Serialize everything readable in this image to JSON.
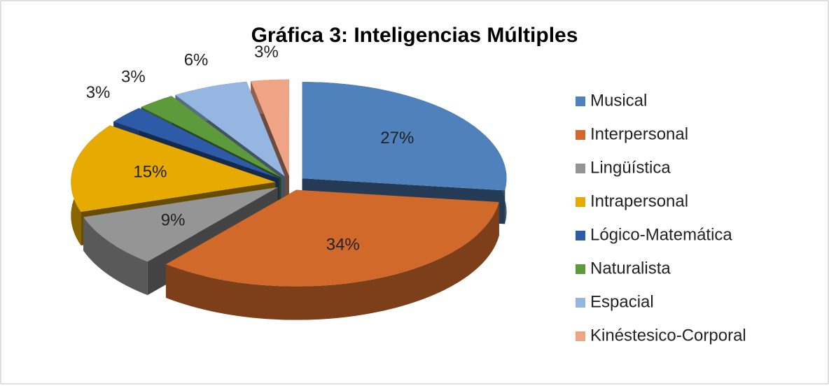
{
  "chart_data": {
    "type": "pie",
    "title": "Gráfica 3: Inteligencias Múltiples",
    "categories": [
      "Musical",
      "Interpersonal",
      "Lingüística",
      "Intrapersonal",
      "Lógico-Matemática",
      "Naturalista",
      "Espacial",
      "Kinéstesico-Corporal"
    ],
    "values": [
      27,
      34,
      9,
      15,
      3,
      3,
      6,
      3
    ],
    "value_labels": [
      "27%",
      "34%",
      "9%",
      "15%",
      "3%",
      "3%",
      "6%",
      "3%"
    ],
    "colors": [
      "#4f81bd",
      "#d0692a",
      "#959595",
      "#e6aa00",
      "#2e5ba8",
      "#5c9a3c",
      "#94b6e0",
      "#efa486"
    ],
    "legend": "right"
  }
}
